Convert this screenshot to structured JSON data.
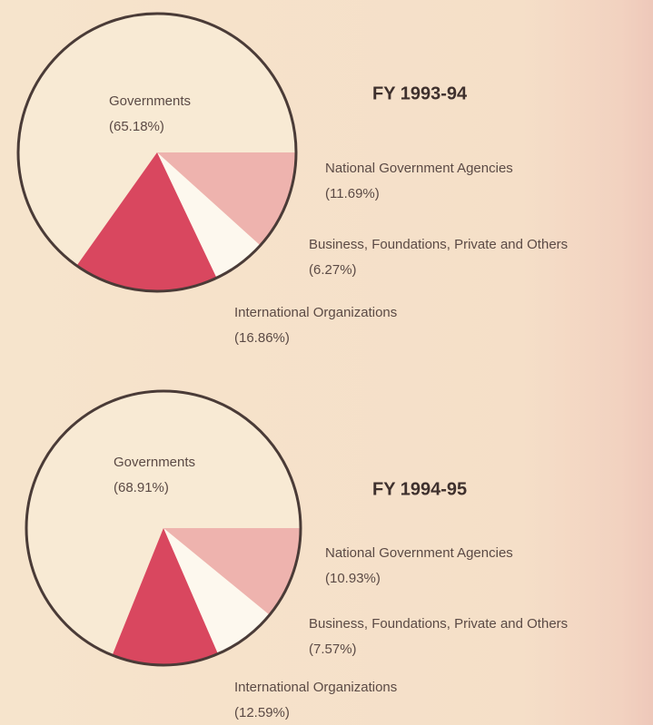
{
  "chart_data": [
    {
      "type": "pie",
      "title": "FY 1993-94",
      "categories": [
        "Governments",
        "National Government Agencies",
        "Business, Foundations, Private and Others",
        "International Organizations"
      ],
      "values": [
        65.18,
        11.69,
        6.27,
        16.86
      ],
      "value_labels": [
        "(65.18%)",
        "(11.69%)",
        "(6.27%)",
        "(16.86%)"
      ],
      "colors": [
        "#f8ead4",
        "#eeb3ae",
        "#fdf8ee",
        "#d9475f"
      ]
    },
    {
      "type": "pie",
      "title": "FY 1994-95",
      "categories": [
        "Governments",
        "National Government Agencies",
        "Business, Foundations, Private and Others",
        "International Organizations"
      ],
      "values": [
        68.91,
        10.93,
        7.57,
        12.59
      ],
      "value_labels": [
        "(68.91%)",
        "(10.93%)",
        "(7.57%)",
        "(12.59%)"
      ],
      "colors": [
        "#f8ead4",
        "#eeb3ae",
        "#fdf8ee",
        "#d9475f"
      ]
    }
  ]
}
